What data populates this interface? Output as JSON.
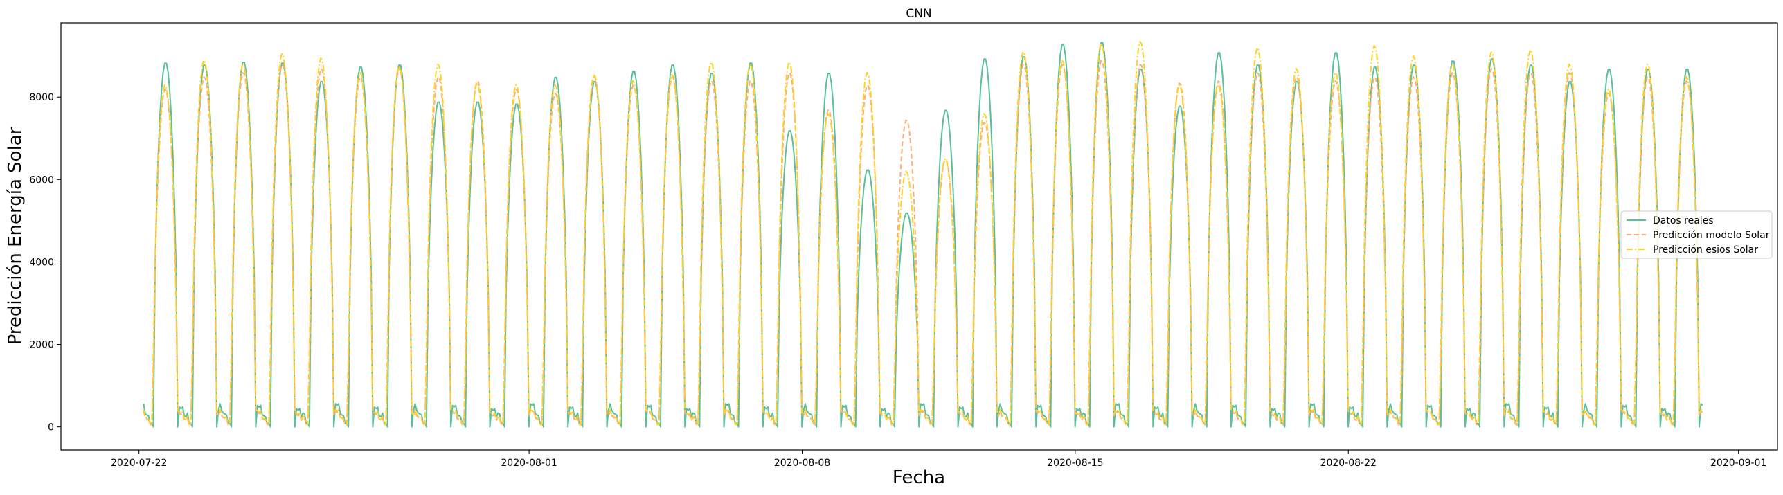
{
  "chart_data": {
    "type": "line",
    "title": "CNN",
    "xlabel": "Fecha",
    "ylabel": "Predicción Energía Solar",
    "x_range": [
      "2020-07-20",
      "2020-09-02"
    ],
    "ylim": [
      -560,
      9800
    ],
    "x_ticks": [
      "2020-07-22",
      "2020-08-01",
      "2020-08-08",
      "2020-08-15",
      "2020-08-22",
      "2020-09-01"
    ],
    "y_ticks": [
      0,
      2000,
      4000,
      6000,
      8000
    ],
    "grid": false,
    "legend_position": "center-right",
    "series": [
      {
        "name": "Datos reales",
        "color": "#5abf9b",
        "dash": "solid",
        "start_date": "2020-07-22",
        "peaks": [
          8850,
          8800,
          8870,
          8850,
          8400,
          8750,
          8800,
          7900,
          7900,
          7850,
          8500,
          8400,
          8650,
          8800,
          8600,
          8850,
          7200,
          8600,
          6250,
          5200,
          7700,
          8950,
          9000,
          9300,
          9350,
          8700,
          7800,
          9100,
          8800,
          8400,
          9100,
          8750,
          8800,
          8900,
          8950,
          8800,
          8400,
          8700,
          8700,
          8700
        ]
      },
      {
        "name": "Predicción modelo Solar",
        "color": "#ffad7a",
        "dash": "dashed",
        "start_date": "2020-07-22",
        "peaks": [
          8200,
          8500,
          8600,
          8800,
          8700,
          8500,
          8700,
          8500,
          8400,
          8200,
          8100,
          8500,
          8300,
          8500,
          8400,
          8400,
          8600,
          7700,
          8300,
          7450,
          6500,
          7400,
          8800,
          8800,
          8900,
          8800,
          8350,
          8400,
          8600,
          8500,
          8400,
          8500,
          8500,
          8600,
          8700,
          8600,
          8600,
          8100,
          8500,
          8400
        ]
      },
      {
        "name": "Predicción esios Solar",
        "color": "#ffd21f",
        "dash": "dashdot",
        "start_date": "2020-07-22",
        "peaks": [
          8300,
          8900,
          8800,
          9050,
          8950,
          8600,
          8750,
          8800,
          8350,
          8300,
          8300,
          8550,
          8400,
          8550,
          8850,
          8800,
          8850,
          7600,
          8600,
          6200,
          6500,
          7600,
          9100,
          8900,
          9300,
          9350,
          8300,
          8300,
          9200,
          8700,
          8600,
          9250,
          9000,
          8800,
          9100,
          9150,
          8800,
          8200,
          8800,
          8500
        ]
      }
    ]
  }
}
